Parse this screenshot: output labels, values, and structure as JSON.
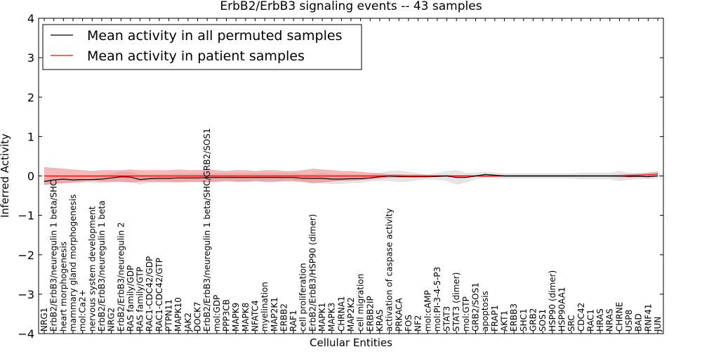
{
  "chart_data": {
    "type": "line",
    "title": "ErbB2/ErbB3 signaling events -- 43 samples",
    "xlabel": "Cellular Entities",
    "ylabel": "Inferred Activity",
    "ylim": [
      -4,
      4
    ],
    "yticks": [
      -4,
      -3,
      -2,
      -1,
      0,
      1,
      2,
      3,
      4
    ],
    "ytick_labels": [
      "−4",
      "−3",
      "−2",
      "−1",
      "0",
      "1",
      "2",
      "3",
      "4"
    ],
    "legend": {
      "placement": "top-left",
      "entries": [
        {
          "label": "Mean activity in all permuted samples",
          "color": "#000000"
        },
        {
          "label": "Mean activity in patient samples",
          "color": "#ff0000"
        }
      ]
    },
    "categories": [
      "NRG1",
      "ErbB2/ErbB3/neuregulin 1 beta/SHC",
      "heart morphogenesis",
      "mammary gland morphogenesis",
      "mol:Ca2+",
      "nervous system development",
      "ErbB2/ErbB3/neuregulin 1 beta",
      "NRG2",
      "ErbB2/ErbB3/neuregulin 2",
      "RAS family/GDP",
      "RAS family/GTP",
      "RAC1-CDC42/GDP",
      "RAC1-CDC42/GTP",
      "PTPN11",
      "MAPK10",
      "JAK2",
      "DOCK7",
      "ErbB2/ErbB3/neuregulin 1 beta/SHC/GRB2/SOS1",
      "mol:GDP",
      "PPP3CB",
      "MAPK9",
      "MAPK8",
      "NFATC4",
      "myelination",
      "MAP2K1",
      "ERBB2",
      "RAF1",
      "cell proliferation",
      "ErbB2/ErbB3/HSP90 (dimer)",
      "MAPK1",
      "MAPK3",
      "CHRNA1",
      "MAP2K2",
      "cell migration",
      "ERBB2IP",
      "KRAS",
      "activation of caspase activity",
      "PRKACA",
      "FOS",
      "NF2",
      "mol:cAMP",
      "mol:PI-3-4-5-P3",
      "STAT3",
      "STAT3 (dimer)",
      "mol:GTP",
      "GRB2/SOS1",
      "apoptosis",
      "FRAP1",
      "AKT1",
      "ERBB3",
      "SHC1",
      "GRB2",
      "SOS1",
      "HSP90 (dimer)",
      "HSP90AA1",
      "SRC",
      "CDC42",
      "RAC1",
      "HRAS",
      "NRAS",
      "CHRNE",
      "USP8",
      "BAD",
      "RNF41",
      "JUN"
    ],
    "series": [
      {
        "name": "Mean activity in all permuted samples",
        "color": "#000000",
        "values": [
          -0.14,
          -0.1,
          -0.08,
          -0.1,
          -0.09,
          -0.09,
          -0.08,
          -0.05,
          -0.02,
          -0.03,
          -0.09,
          -0.07,
          -0.06,
          -0.06,
          -0.05,
          -0.05,
          -0.05,
          -0.04,
          -0.04,
          -0.04,
          -0.04,
          -0.04,
          -0.04,
          -0.04,
          -0.04,
          -0.04,
          -0.04,
          -0.06,
          -0.06,
          -0.06,
          -0.08,
          -0.08,
          -0.07,
          -0.07,
          -0.05,
          -0.02,
          0.0,
          -0.01,
          -0.02,
          -0.02,
          -0.02,
          -0.01,
          0.0,
          -0.04,
          -0.04,
          0.0,
          0.04,
          0.02,
          0.0,
          0.0,
          0.0,
          0.0,
          0.0,
          0.0,
          0.0,
          0.0,
          0.0,
          0.0,
          0.0,
          0.0,
          0.0,
          -0.01,
          -0.01,
          -0.02,
          0.0
        ],
        "band": [
          0.08,
          0.1,
          0.08,
          0.08,
          0.08,
          0.08,
          0.1,
          0.1,
          0.12,
          0.12,
          0.12,
          0.1,
          0.1,
          0.1,
          0.1,
          0.1,
          0.1,
          0.1,
          0.1,
          0.1,
          0.1,
          0.1,
          0.1,
          0.1,
          0.1,
          0.1,
          0.1,
          0.1,
          0.1,
          0.12,
          0.12,
          0.12,
          0.1,
          0.1,
          0.08,
          0.1,
          0.12,
          0.14,
          0.12,
          0.08,
          0.06,
          0.08,
          0.12,
          0.18,
          0.12,
          0.08,
          0.06,
          0.06,
          0.06,
          0.06,
          0.06,
          0.06,
          0.06,
          0.06,
          0.06,
          0.06,
          0.08,
          0.08,
          0.08,
          0.08,
          0.12,
          0.08,
          0.06,
          0.06,
          0.06
        ]
      },
      {
        "name": "Mean activity in patient samples",
        "color": "#ff0000",
        "values": [
          0.0,
          0.0,
          0.0,
          0.0,
          0.0,
          0.0,
          0.0,
          0.0,
          0.0,
          0.0,
          0.0,
          0.0,
          0.0,
          0.0,
          0.0,
          0.0,
          0.0,
          0.0,
          0.0,
          0.0,
          0.0,
          0.0,
          0.0,
          0.0,
          0.0,
          0.0,
          0.0,
          0.0,
          0.0,
          0.0,
          0.0,
          0.0,
          0.0,
          0.0,
          0.0,
          0.0,
          0.0,
          0.0,
          0.0,
          0.0,
          0.0,
          0.0,
          0.0,
          0.0,
          0.0,
          0.0,
          0.0,
          0.0,
          0.0,
          0.0,
          0.0,
          0.0,
          0.0,
          0.0,
          0.0,
          0.0,
          0.0,
          0.0,
          0.0,
          0.0,
          0.0,
          0.01,
          0.02,
          0.03,
          0.05
        ],
        "band": [
          0.22,
          0.2,
          0.18,
          0.16,
          0.14,
          0.12,
          0.14,
          0.14,
          0.14,
          0.16,
          0.14,
          0.14,
          0.14,
          0.14,
          0.16,
          0.14,
          0.14,
          0.16,
          0.14,
          0.12,
          0.14,
          0.14,
          0.12,
          0.14,
          0.14,
          0.12,
          0.12,
          0.14,
          0.18,
          0.16,
          0.14,
          0.12,
          0.12,
          0.1,
          0.08,
          0.06,
          0.04,
          0.04,
          0.03,
          0.03,
          0.02,
          0.02,
          0.02,
          0.02,
          0.02,
          0.02,
          0.02,
          0.02,
          0.02,
          0.02,
          0.02,
          0.02,
          0.02,
          0.02,
          0.02,
          0.02,
          0.02,
          0.02,
          0.02,
          0.02,
          0.03,
          0.04,
          0.04,
          0.05,
          0.06
        ]
      }
    ]
  }
}
